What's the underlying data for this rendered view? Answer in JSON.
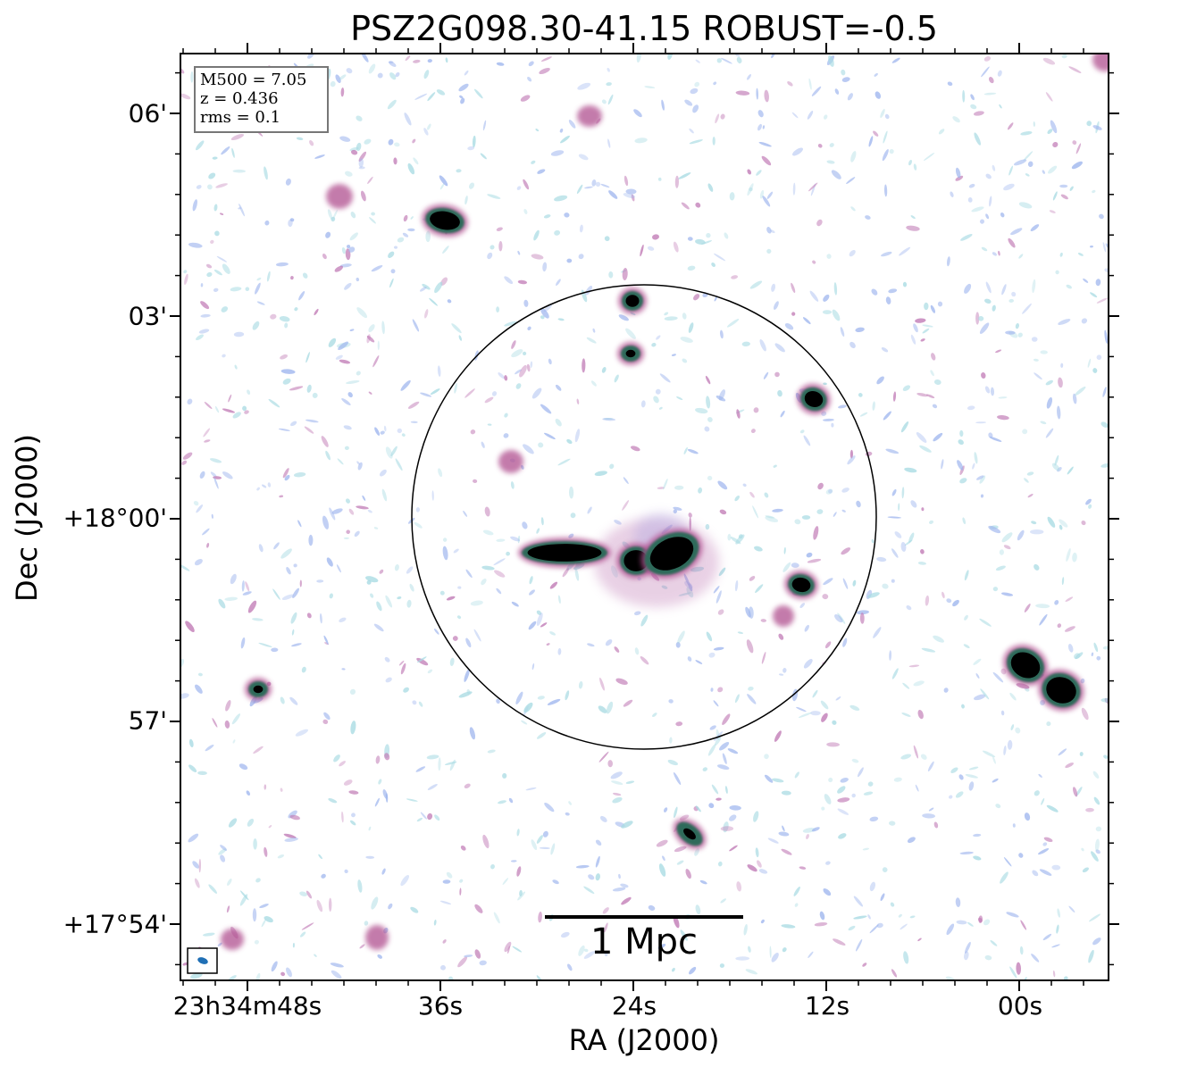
{
  "title": "PSZ2G098.30-41.15 ROBUST=-0.5",
  "xlabel": "RA (J2000)",
  "ylabel": "Dec (J2000)",
  "info": {
    "mass": "M500 = 7.05",
    "redshift": "z = 0.436",
    "rms": "rms = 0.1"
  },
  "scalebar_label": "1 Mpc",
  "ra_ticks": [
    "23h34m48s",
    "36s",
    "24s",
    "12s",
    "00s"
  ],
  "dec_ticks": [
    "06'",
    "03'",
    "+18°00'",
    "57'",
    "+17°54'"
  ],
  "colors": {
    "source_core": "#000000",
    "source_rim": "#b0508f",
    "noise_blue": "#9fb6ee",
    "noise_cyan": "#a9dbe3",
    "noise_pink": "#c07ab5",
    "beam": "#1f6fb5",
    "circle": "#000000"
  }
}
